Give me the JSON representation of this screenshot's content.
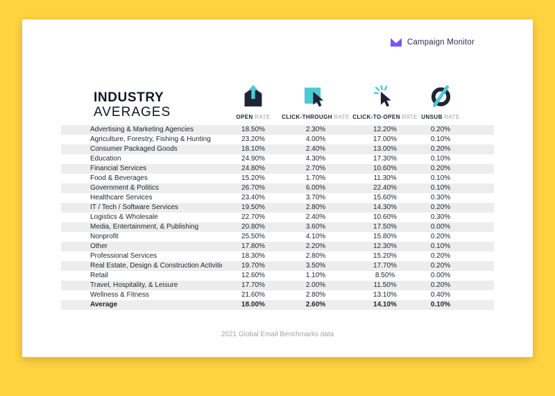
{
  "brand": {
    "name": "Campaign Monitor"
  },
  "header": {
    "title_line1": "INDUSTRY",
    "title_line2": "AVERAGES"
  },
  "chart_data": {
    "type": "table",
    "title": "Industry Averages",
    "columns": [
      "Industry",
      "Open Rate",
      "Click-Through Rate",
      "Click-to-Open Rate",
      "Unsub Rate"
    ],
    "column_headers": [
      {
        "strong": "OPEN",
        "light": "RATE",
        "icon": "open-rate-icon"
      },
      {
        "strong": "CLICK-THROUGH",
        "light": "RATE",
        "icon": "click-through-rate-icon"
      },
      {
        "strong": "CLICK-TO-OPEN",
        "light": "RATE",
        "icon": "click-to-open-rate-icon"
      },
      {
        "strong": "UNSUB",
        "light": "RATE",
        "icon": "unsub-rate-icon"
      }
    ],
    "rows": [
      {
        "industry": "Advertising & Marketing Agencies",
        "values": [
          "18.50%",
          "2.30%",
          "12.20%",
          "0.20%"
        ]
      },
      {
        "industry": "Agriculture, Forestry, Fishing & Hunting",
        "values": [
          "23.20%",
          "4.00%",
          "17.00%",
          "0.10%"
        ]
      },
      {
        "industry": "Consumer Packaged Goods",
        "values": [
          "18.10%",
          "2.40%",
          "13.00%",
          "0.20%"
        ]
      },
      {
        "industry": "Education",
        "values": [
          "24.90%",
          "4.30%",
          "17.30%",
          "0.10%"
        ]
      },
      {
        "industry": "Financial Services",
        "values": [
          "24.80%",
          "2.70%",
          "10.60%",
          "0.20%"
        ]
      },
      {
        "industry": "Food & Beverages",
        "values": [
          "15.20%",
          "1.70%",
          "11.30%",
          "0.10%"
        ]
      },
      {
        "industry": "Government & Politics",
        "values": [
          "26.70%",
          "6.00%",
          "22.40%",
          "0.10%"
        ]
      },
      {
        "industry": "Healthcare Services",
        "values": [
          "23.40%",
          "3.70%",
          "15.60%",
          "0.30%"
        ]
      },
      {
        "industry": "IT / Tech / Software Services",
        "values": [
          "19.50%",
          "2.80%",
          "14.30%",
          "0.20%"
        ]
      },
      {
        "industry": "Logistics & Wholesale",
        "values": [
          "22.70%",
          "2.40%",
          "10.60%",
          "0.30%"
        ]
      },
      {
        "industry": "Media, Entertainment, & Publishing",
        "values": [
          "20.80%",
          "3.60%",
          "17.50%",
          "0.00%"
        ]
      },
      {
        "industry": "Nonprofit",
        "values": [
          "25.50%",
          "4.10%",
          "15.80%",
          "0.20%"
        ]
      },
      {
        "industry": "Other",
        "values": [
          "17.80%",
          "2.20%",
          "12.30%",
          "0.10%"
        ]
      },
      {
        "industry": "Professional Services",
        "values": [
          "18.30%",
          "2.80%",
          "15.20%",
          "0.20%"
        ]
      },
      {
        "industry": "Real Estate, Design & Construction Activities",
        "values": [
          "19.70%",
          "3.50%",
          "17.70%",
          "0.20%"
        ]
      },
      {
        "industry": "Retail",
        "values": [
          "12.60%",
          "1.10%",
          "8.50%",
          "0.00%"
        ]
      },
      {
        "industry": "Travel, Hospitality, & Leisure",
        "values": [
          "17.70%",
          "2.00%",
          "11.50%",
          "0.20%"
        ]
      },
      {
        "industry": "Wellness & Fitness",
        "values": [
          "21.60%",
          "2.80%",
          "13.10%",
          "0.40%"
        ]
      }
    ],
    "average_row": {
      "industry": "Average",
      "values": [
        "18.00%",
        "2.60%",
        "14.10%",
        "0.10%"
      ]
    }
  },
  "footer": {
    "caption": "2021 Global Email Benchmarks data"
  },
  "colors": {
    "background": "#FFD340",
    "teal": "#4EC9D4",
    "dark": "#1E2537",
    "row_stripe": "#EDEDED",
    "logo_purple": "#7856FF"
  }
}
